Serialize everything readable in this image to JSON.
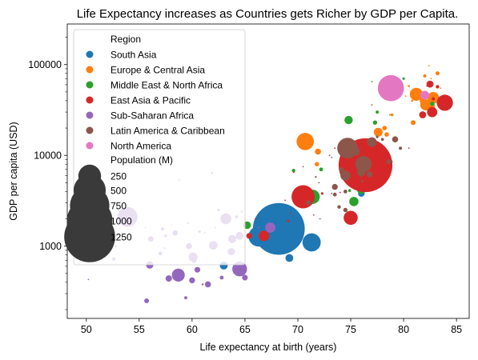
{
  "chart_data": {
    "type": "scatter",
    "title": "Life Expectancy increases as Countries gets Richer by GDP per Capita.",
    "xlabel": "Life expectancy at birth (years)",
    "ylabel": "GDP per capita (USD)",
    "xlim": [
      48.2,
      86.2
    ],
    "ylim": [
      160,
      280000
    ],
    "yscale": "log",
    "xticks": [
      50,
      55,
      60,
      65,
      70,
      75,
      80,
      85
    ],
    "yticks": [
      1000,
      10000,
      100000
    ],
    "legend": {
      "region_title": "Region",
      "size_title": "Population (M)",
      "size_values": [
        250,
        500,
        750,
        1000,
        1250
      ],
      "placement": "top-left"
    },
    "series": [
      {
        "name": "South Asia",
        "color": "#1f77b4",
        "points": [
          {
            "x": 68.2,
            "y": 1550,
            "pop": 1300
          },
          {
            "x": 71.3,
            "y": 1100,
            "pop": 160
          },
          {
            "x": 66.3,
            "y": 1280,
            "pop": 200
          },
          {
            "x": 69.2,
            "y": 740,
            "pop": 30
          },
          {
            "x": 63.0,
            "y": 610,
            "pop": 30
          },
          {
            "x": 76.0,
            "y": 3800,
            "pop": 21
          },
          {
            "x": 77.6,
            "y": 10000,
            "pop": 0.4
          }
        ]
      },
      {
        "name": "Europe & Central Asia",
        "color": "#ff7f0e",
        "points": [
          {
            "x": 70.7,
            "y": 14200,
            "pop": 144
          },
          {
            "x": 76.3,
            "y": 12000,
            "pop": 70
          },
          {
            "x": 81.2,
            "y": 47000,
            "pop": 81
          },
          {
            "x": 82.8,
            "y": 43000,
            "pop": 66
          },
          {
            "x": 82.1,
            "y": 36000,
            "pop": 60
          },
          {
            "x": 81.8,
            "y": 48000,
            "pop": 10
          },
          {
            "x": 82.5,
            "y": 35000,
            "pop": 46
          },
          {
            "x": 81.8,
            "y": 40000,
            "pop": 17
          },
          {
            "x": 83.2,
            "y": 80000,
            "pop": 8
          },
          {
            "x": 82.0,
            "y": 75000,
            "pop": 5
          },
          {
            "x": 82.4,
            "y": 97000,
            "pop": 1
          },
          {
            "x": 80.9,
            "y": 23000,
            "pop": 11
          },
          {
            "x": 78.4,
            "y": 17000,
            "pop": 10
          },
          {
            "x": 77.6,
            "y": 18000,
            "pop": 38
          },
          {
            "x": 75.6,
            "y": 13000,
            "pop": 19
          },
          {
            "x": 78.2,
            "y": 20000,
            "pop": 10
          },
          {
            "x": 78.9,
            "y": 28000,
            "pop": 4
          },
          {
            "x": 77.7,
            "y": 17500,
            "pop": 4
          },
          {
            "x": 80.5,
            "y": 58000,
            "pop": 2
          },
          {
            "x": 74.5,
            "y": 7400,
            "pop": 7
          },
          {
            "x": 71.8,
            "y": 8000,
            "pop": 9
          },
          {
            "x": 71.0,
            "y": 3200,
            "pop": 42
          },
          {
            "x": 71.9,
            "y": 11000,
            "pop": 18
          },
          {
            "x": 75.0,
            "y": 5500,
            "pop": 3
          },
          {
            "x": 75.5,
            "y": 4600,
            "pop": 2
          },
          {
            "x": 80.8,
            "y": 40000,
            "pop": 2
          },
          {
            "x": 82.6,
            "y": 70000,
            "pop": 0.6
          },
          {
            "x": 76.0,
            "y": 9000,
            "pop": 1
          },
          {
            "x": 83.5,
            "y": 55000,
            "pop": 0.4
          },
          {
            "x": 80.2,
            "y": 45000,
            "pop": 0.3
          }
        ]
      },
      {
        "name": "Middle East & North Africa",
        "color": "#2ca02c",
        "points": [
          {
            "x": 75.8,
            "y": 5700,
            "pop": 80
          },
          {
            "x": 74.8,
            "y": 24500,
            "pop": 33
          },
          {
            "x": 71.4,
            "y": 3500,
            "pop": 97
          },
          {
            "x": 75.3,
            "y": 3100,
            "pop": 41
          },
          {
            "x": 76.0,
            "y": 4200,
            "pop": 36
          },
          {
            "x": 75.1,
            "y": 5600,
            "pop": 11
          },
          {
            "x": 69.6,
            "y": 6800,
            "pop": 6
          },
          {
            "x": 76.6,
            "y": 8500,
            "pop": 4
          },
          {
            "x": 77.3,
            "y": 23000,
            "pop": 9
          },
          {
            "x": 82.7,
            "y": 37000,
            "pop": 9
          },
          {
            "x": 80.0,
            "y": 70000,
            "pop": 3
          },
          {
            "x": 79.0,
            "y": 44000,
            "pop": 4
          },
          {
            "x": 77.5,
            "y": 30000,
            "pop": 5
          },
          {
            "x": 78.7,
            "y": 28000,
            "pop": 1
          },
          {
            "x": 74.3,
            "y": 5800,
            "pop": 10
          },
          {
            "x": 74.9,
            "y": 4100,
            "pop": 4
          },
          {
            "x": 65.2,
            "y": 1700,
            "pop": 28
          },
          {
            "x": 78.8,
            "y": 8500,
            "pop": 6
          },
          {
            "x": 77.0,
            "y": 65000,
            "pop": 1
          },
          {
            "x": 72.2,
            "y": 7000,
            "pop": 7
          }
        ]
      },
      {
        "name": "East Asia & Pacific",
        "color": "#d62728",
        "points": [
          {
            "x": 76.4,
            "y": 7800,
            "pop": 1390
          },
          {
            "x": 70.5,
            "y": 3500,
            "pop": 260
          },
          {
            "x": 75.0,
            "y": 2050,
            "pop": 95
          },
          {
            "x": 83.9,
            "y": 38000,
            "pop": 127
          },
          {
            "x": 82.5,
            "y": 61000,
            "pop": 24
          },
          {
            "x": 82.7,
            "y": 30000,
            "pop": 51
          },
          {
            "x": 82.8,
            "y": 42000,
            "pop": 5
          },
          {
            "x": 83.2,
            "y": 57000,
            "pop": 6
          },
          {
            "x": 81.8,
            "y": 28000,
            "pop": 24
          },
          {
            "x": 75.4,
            "y": 10200,
            "pop": 31
          },
          {
            "x": 76.8,
            "y": 6000,
            "pop": 69
          },
          {
            "x": 69.6,
            "y": 6500,
            "pop": 1
          },
          {
            "x": 69.1,
            "y": 1900,
            "pop": 3
          },
          {
            "x": 65.4,
            "y": 1300,
            "pop": 16
          },
          {
            "x": 66.8,
            "y": 1300,
            "pop": 53
          },
          {
            "x": 72.3,
            "y": 3800,
            "pop": 3
          },
          {
            "x": 74.0,
            "y": 3900,
            "pop": 0.8
          },
          {
            "x": 71.0,
            "y": 3800,
            "pop": 0.1
          },
          {
            "x": 66.0,
            "y": 2000,
            "pop": 0.2
          },
          {
            "x": 68.8,
            "y": 3200,
            "pop": 0.5
          },
          {
            "x": 82.2,
            "y": 58000,
            "pop": 0.6
          },
          {
            "x": 73.2,
            "y": 3800,
            "pop": 0.6
          },
          {
            "x": 69.3,
            "y": 2300,
            "pop": 0.2
          },
          {
            "x": 73.5,
            "y": 12000,
            "pop": 0.3
          }
        ]
      },
      {
        "name": "Sub-Saharan Africa",
        "color": "#9467bd",
        "points": [
          {
            "x": 53.9,
            "y": 2100,
            "pop": 191
          },
          {
            "x": 64.5,
            "y": 560,
            "pop": 105
          },
          {
            "x": 63.2,
            "y": 2000,
            "pop": 57
          },
          {
            "x": 62.0,
            "y": 1020,
            "pop": 36
          },
          {
            "x": 58.7,
            "y": 480,
            "pop": 81
          },
          {
            "x": 67.4,
            "y": 1600,
            "pop": 50
          },
          {
            "x": 63.8,
            "y": 1200,
            "pop": 32
          },
          {
            "x": 60.1,
            "y": 760,
            "pop": 39
          },
          {
            "x": 60.0,
            "y": 420,
            "pop": 17
          },
          {
            "x": 56.0,
            "y": 620,
            "pop": 26
          },
          {
            "x": 61.5,
            "y": 380,
            "pop": 18
          },
          {
            "x": 63.7,
            "y": 870,
            "pop": 25
          },
          {
            "x": 57.8,
            "y": 440,
            "pop": 20
          },
          {
            "x": 65.0,
            "y": 450,
            "pop": 16
          },
          {
            "x": 60.5,
            "y": 550,
            "pop": 16
          },
          {
            "x": 59.4,
            "y": 270,
            "pop": 4.5
          },
          {
            "x": 55.7,
            "y": 250,
            "pop": 11
          },
          {
            "x": 57.0,
            "y": 830,
            "pop": 7
          },
          {
            "x": 52.2,
            "y": 1150,
            "pop": 5
          },
          {
            "x": 52.8,
            "y": 1000,
            "pop": 2
          },
          {
            "x": 62.8,
            "y": 450,
            "pop": 7
          },
          {
            "x": 60.2,
            "y": 700,
            "pop": 13
          },
          {
            "x": 61.0,
            "y": 380,
            "pop": 2
          },
          {
            "x": 59.7,
            "y": 1000,
            "pop": 18
          },
          {
            "x": 61.9,
            "y": 6400,
            "pop": 2.2
          },
          {
            "x": 64.5,
            "y": 1300,
            "pop": 30
          },
          {
            "x": 60.7,
            "y": 1450,
            "pop": 3
          },
          {
            "x": 62.5,
            "y": 2500,
            "pop": 3
          },
          {
            "x": 57.5,
            "y": 1300,
            "pop": 4
          },
          {
            "x": 58.4,
            "y": 1400,
            "pop": 14
          },
          {
            "x": 56.1,
            "y": 1200,
            "pop": 15
          },
          {
            "x": 58.8,
            "y": 5400,
            "pop": 0.8
          },
          {
            "x": 52.6,
            "y": 4300,
            "pop": 1.3
          },
          {
            "x": 55.6,
            "y": 1600,
            "pop": 0.8
          },
          {
            "x": 57.2,
            "y": 1550,
            "pop": 5
          },
          {
            "x": 50.2,
            "y": 430,
            "pop": 0.5
          },
          {
            "x": 52.6,
            "y": 720,
            "pop": 5
          },
          {
            "x": 58.0,
            "y": 1700,
            "pop": 0.5
          },
          {
            "x": 62.2,
            "y": 1600,
            "pop": 1.3
          },
          {
            "x": 64.7,
            "y": 2400,
            "pop": 2
          },
          {
            "x": 65.0,
            "y": 1700,
            "pop": 2.3
          },
          {
            "x": 64.2,
            "y": 2100,
            "pop": 5
          },
          {
            "x": 66.3,
            "y": 1600,
            "pop": 0.6
          },
          {
            "x": 73.2,
            "y": 9500,
            "pop": 1.3
          },
          {
            "x": 57.4,
            "y": 950,
            "pop": 1.5
          },
          {
            "x": 61.2,
            "y": 1400,
            "pop": 1.2
          },
          {
            "x": 59.6,
            "y": 1800,
            "pop": 1.9
          }
        ]
      },
      {
        "name": "Latin America & Caribbean",
        "color": "#8c564b",
        "points": [
          {
            "x": 74.7,
            "y": 12000,
            "pop": 207
          },
          {
            "x": 76.2,
            "y": 8000,
            "pop": 129
          },
          {
            "x": 77.0,
            "y": 14000,
            "pop": 44
          },
          {
            "x": 74.5,
            "y": 6000,
            "pop": 49
          },
          {
            "x": 76.0,
            "y": 6500,
            "pop": 32
          },
          {
            "x": 79.2,
            "y": 15000,
            "pop": 18
          },
          {
            "x": 75.5,
            "y": 11000,
            "pop": 31
          },
          {
            "x": 76.8,
            "y": 6200,
            "pop": 17
          },
          {
            "x": 73.5,
            "y": 4500,
            "pop": 17
          },
          {
            "x": 78.6,
            "y": 8500,
            "pop": 11
          },
          {
            "x": 74.1,
            "y": 7000,
            "pop": 11
          },
          {
            "x": 71.0,
            "y": 3000,
            "pop": 11
          },
          {
            "x": 74.5,
            "y": 2500,
            "pop": 9
          },
          {
            "x": 79.7,
            "y": 12000,
            "pop": 5
          },
          {
            "x": 78.0,
            "y": 15000,
            "pop": 4
          },
          {
            "x": 73.5,
            "y": 3700,
            "pop": 7
          },
          {
            "x": 73.9,
            "y": 2700,
            "pop": 6
          },
          {
            "x": 77.5,
            "y": 16000,
            "pop": 3
          },
          {
            "x": 72.0,
            "y": 5000,
            "pop": 0.6
          },
          {
            "x": 76.1,
            "y": 5200,
            "pop": 2.9
          },
          {
            "x": 74.5,
            "y": 4000,
            "pop": 7
          },
          {
            "x": 71.7,
            "y": 5800,
            "pop": 1.4
          },
          {
            "x": 80.5,
            "y": 12000,
            "pop": 0.6
          },
          {
            "x": 76.0,
            "y": 5700,
            "pop": 0.4
          },
          {
            "x": 73.0,
            "y": 10000,
            "pop": 0.1
          },
          {
            "x": 75.9,
            "y": 12000,
            "pop": 0.1
          },
          {
            "x": 70.5,
            "y": 7500,
            "pop": 0.8
          },
          {
            "x": 72.1,
            "y": 2000,
            "pop": 0.4
          },
          {
            "x": 77.0,
            "y": 36000,
            "pop": 0.3
          },
          {
            "x": 71.5,
            "y": 2200,
            "pop": 0.2
          },
          {
            "x": 69.6,
            "y": 4000,
            "pop": 0.1
          }
        ]
      },
      {
        "name": "North America",
        "color": "#e377c2",
        "points": [
          {
            "x": 78.8,
            "y": 55000,
            "pop": 327
          },
          {
            "x": 82.0,
            "y": 46000,
            "pop": 37
          }
        ]
      }
    ]
  }
}
